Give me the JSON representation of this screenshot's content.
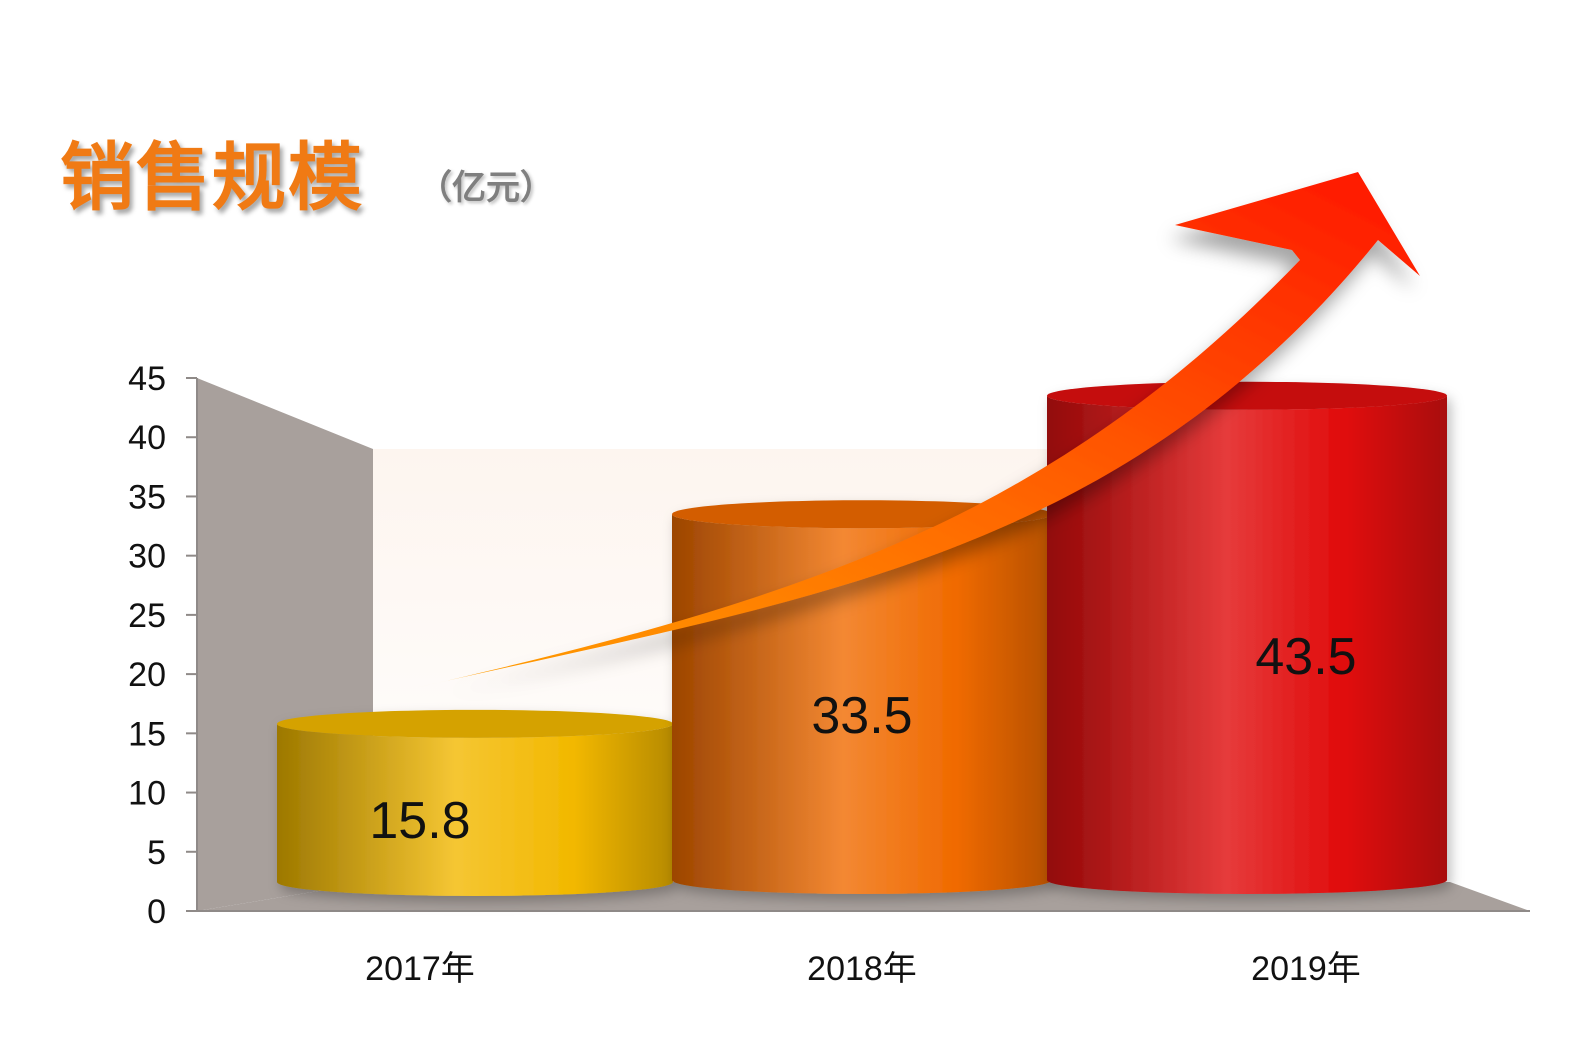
{
  "chart_data": {
    "type": "bar",
    "title": "销售规模",
    "unit": "（亿元）",
    "categories": [
      "2017年",
      "2018年",
      "2019年"
    ],
    "values": [
      15.8,
      33.5,
      43.5
    ],
    "value_labels": [
      "15.8",
      "33.5",
      "43.5"
    ],
    "ylim": [
      0,
      45
    ],
    "yticks": [
      "0",
      "5",
      "10",
      "15",
      "20",
      "25",
      "30",
      "35",
      "40",
      "45"
    ],
    "grid": false,
    "colors": [
      "#F2B800",
      "#F06A00",
      "#E00A0A"
    ],
    "arrow_color": "#FF2A00"
  }
}
